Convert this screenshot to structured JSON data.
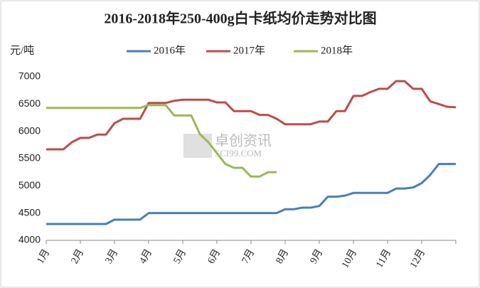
{
  "chart_data": {
    "type": "line",
    "title": "2016-2018年250-400g白卡纸均价走势对比图",
    "y_label": "元/吨",
    "watermark": "卓创资讯",
    "watermark_sub": "SCI99.COM",
    "categories": [
      "1月",
      null,
      null,
      null,
      "2月",
      null,
      null,
      null,
      "3月",
      null,
      null,
      null,
      "4月",
      null,
      null,
      null,
      "5月",
      null,
      null,
      null,
      "6月",
      null,
      null,
      null,
      "7月",
      null,
      null,
      null,
      "8月",
      null,
      null,
      null,
      "9月",
      null,
      null,
      null,
      "10月",
      null,
      null,
      null,
      "11月",
      null,
      null,
      null,
      "12月",
      null,
      null,
      null,
      null
    ],
    "series": [
      {
        "name": "2016年",
        "color": "#4a7ebb",
        "values": [
          4300,
          4300,
          4300,
          4300,
          4300,
          4300,
          4300,
          4300,
          4380,
          4380,
          4380,
          4380,
          4500,
          4500,
          4500,
          4500,
          4500,
          4500,
          4500,
          4500,
          4500,
          4500,
          4500,
          4500,
          4500,
          4500,
          4500,
          4500,
          4570,
          4570,
          4600,
          4600,
          4630,
          4800,
          4800,
          4820,
          4870,
          4870,
          4870,
          4870,
          4870,
          4950,
          4950,
          4970,
          5050,
          5200,
          5400,
          5400,
          5400
        ]
      },
      {
        "name": "2017年",
        "color": "#be4b48",
        "values": [
          5670,
          5670,
          5670,
          5800,
          5880,
          5880,
          5940,
          5940,
          6150,
          6230,
          6230,
          6230,
          6520,
          6520,
          6520,
          6560,
          6580,
          6580,
          6580,
          6580,
          6530,
          6530,
          6370,
          6370,
          6370,
          6300,
          6300,
          6230,
          6130,
          6130,
          6130,
          6130,
          6180,
          6180,
          6370,
          6370,
          6650,
          6650,
          6720,
          6780,
          6780,
          6920,
          6920,
          6780,
          6780,
          6550,
          6500,
          6450,
          6440
        ]
      },
      {
        "name": "2018年",
        "color": "#98b954",
        "values": [
          6430,
          6430,
          6430,
          6430,
          6430,
          6430,
          6430,
          6430,
          6430,
          6430,
          6430,
          6430,
          6480,
          6480,
          6480,
          6290,
          6290,
          6290,
          5950,
          5800,
          5600,
          5400,
          5330,
          5330,
          5170,
          5170,
          5250,
          5250,
          null,
          null,
          null,
          null,
          null,
          null,
          null,
          null,
          null,
          null,
          null,
          null,
          null,
          null,
          null,
          null,
          null,
          null,
          null,
          null,
          null
        ]
      }
    ],
    "ylim": [
      4000,
      7000
    ],
    "yticks": [
      4000,
      4500,
      5000,
      5500,
      6000,
      6500,
      7000
    ],
    "grid": false
  }
}
